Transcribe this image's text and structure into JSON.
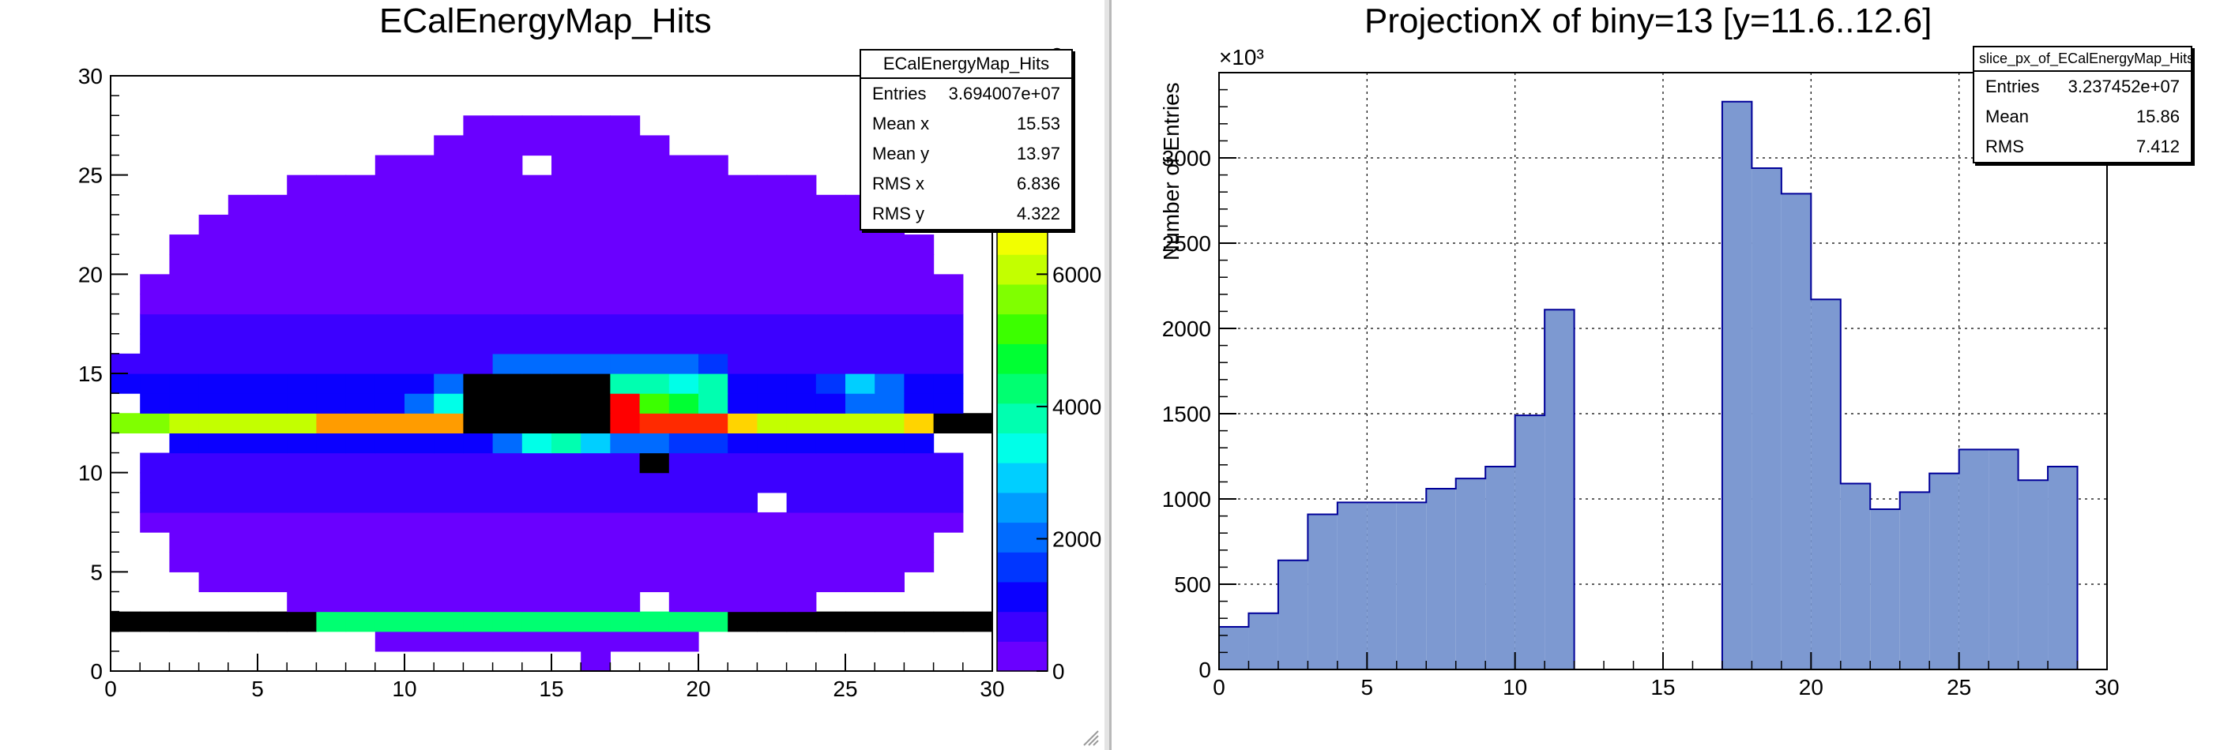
{
  "left": {
    "title": "ECalEnergyMap_Hits",
    "stats": {
      "name": "ECalEnergyMap_Hits",
      "rows": [
        {
          "label": "Entries",
          "value": "3.694007e+07"
        },
        {
          "label": "Mean x",
          "value": "15.53"
        },
        {
          "label": "Mean y",
          "value": "13.97"
        },
        {
          "label": "RMS x",
          "value": "6.836"
        },
        {
          "label": "RMS y",
          "value": "4.322"
        }
      ]
    },
    "palette_labels": [
      "0",
      "2000",
      "4000",
      "6000"
    ],
    "palette_exponent": "3",
    "palette_partial": [
      "00",
      "00"
    ]
  },
  "right": {
    "title": "ProjectionX of biny=13 [y=11.6..12.6]",
    "ylabel": "Number of Entries",
    "exponent_label": "×10³",
    "stats": {
      "name": "slice_px_of_ECalEnergyMap_Hits",
      "rows": [
        {
          "label": "Entries",
          "value": "3.237452e+07"
        },
        {
          "label": "Mean",
          "value": "15.86"
        },
        {
          "label": "RMS",
          "value": "7.412"
        }
      ]
    }
  },
  "colors": {
    "fill": "#7d99d1",
    "line": "#000099",
    "palette": [
      "#6a00ff",
      "#3c00ff",
      "#0b00ff",
      "#0036ff",
      "#006bff",
      "#009cff",
      "#00cfff",
      "#00ffe8",
      "#00ffb0",
      "#00ff71",
      "#00ff33",
      "#3cff00",
      "#80ff00",
      "#c3ff00",
      "#f2ff00",
      "#ffd400",
      "#ff9c00",
      "#ff6000",
      "#ff2a00",
      "#ff0000"
    ]
  },
  "chart_data": [
    {
      "type": "heatmap",
      "title": "ECalEnergyMap_Hits",
      "x_range": [
        0,
        30
      ],
      "y_range": [
        0,
        30
      ],
      "x_ticks": [
        0,
        5,
        10,
        15,
        20,
        25,
        30
      ],
      "y_ticks": [
        0,
        5,
        10,
        15,
        20,
        25,
        30
      ],
      "z_range": [
        0,
        9000
      ],
      "z_ticks": [
        0,
        2000,
        4000,
        6000
      ],
      "bins": 30,
      "x_lo_per_row": [
        16,
        9,
        0,
        6,
        3,
        2,
        2,
        1,
        1,
        1,
        1,
        2,
        0,
        1,
        0,
        0,
        1,
        1,
        1,
        1,
        2,
        2,
        3,
        4,
        6,
        9,
        11,
        12,
        0,
        0
      ],
      "x_hi_per_row": [
        16,
        19,
        29,
        23,
        26,
        27,
        27,
        28,
        28,
        28,
        28,
        27,
        29,
        28,
        28,
        28,
        28,
        28,
        28,
        28,
        27,
        27,
        26,
        25,
        23,
        20,
        18,
        17,
        0,
        0
      ],
      "cells": [
        [
          0,
          2,
          0
        ],
        [
          1,
          2,
          0
        ],
        [
          2,
          2,
          0
        ],
        [
          3,
          2,
          0
        ],
        [
          4,
          2,
          0
        ],
        [
          5,
          2,
          0
        ],
        [
          6,
          2,
          0
        ],
        [
          7,
          2,
          4200
        ],
        [
          8,
          2,
          4200
        ],
        [
          9,
          2,
          4200
        ],
        [
          10,
          2,
          4200
        ],
        [
          11,
          2,
          4200
        ],
        [
          12,
          2,
          4200
        ],
        [
          13,
          2,
          4200
        ],
        [
          14,
          2,
          4200
        ],
        [
          15,
          2,
          4200
        ],
        [
          16,
          2,
          4200
        ],
        [
          17,
          2,
          4200
        ],
        [
          18,
          2,
          4200
        ],
        [
          19,
          2,
          4200
        ],
        [
          20,
          2,
          4200
        ],
        [
          21,
          2,
          0
        ],
        [
          22,
          2,
          0
        ],
        [
          23,
          2,
          0
        ],
        [
          24,
          2,
          0
        ],
        [
          25,
          2,
          0
        ],
        [
          26,
          2,
          0
        ],
        [
          27,
          2,
          0
        ],
        [
          28,
          2,
          0
        ],
        [
          29,
          2,
          0
        ],
        [
          0,
          12,
          5800
        ],
        [
          1,
          12,
          5800
        ],
        [
          2,
          12,
          6000
        ],
        [
          3,
          12,
          6000
        ],
        [
          4,
          12,
          6000
        ],
        [
          5,
          12,
          6000
        ],
        [
          6,
          12,
          6000
        ],
        [
          7,
          12,
          7200
        ],
        [
          8,
          12,
          7200
        ],
        [
          9,
          12,
          7200
        ],
        [
          10,
          12,
          7200
        ],
        [
          11,
          12,
          7200
        ],
        [
          12,
          12,
          0
        ],
        [
          13,
          12,
          0
        ],
        [
          14,
          12,
          0
        ],
        [
          15,
          12,
          0
        ],
        [
          16,
          12,
          0
        ],
        [
          17,
          12,
          9000
        ],
        [
          18,
          12,
          8400
        ],
        [
          19,
          12,
          8400
        ],
        [
          20,
          12,
          8100
        ],
        [
          21,
          12,
          6800
        ],
        [
          22,
          12,
          6200
        ],
        [
          23,
          12,
          6200
        ],
        [
          24,
          12,
          6200
        ],
        [
          25,
          12,
          6200
        ],
        [
          26,
          12,
          6200
        ],
        [
          27,
          12,
          7000
        ],
        [
          28,
          12,
          0
        ],
        [
          29,
          12,
          0
        ],
        [
          17,
          13,
          9000
        ],
        [
          18,
          13,
          5200
        ],
        [
          19,
          13,
          4600
        ],
        [
          20,
          13,
          3700
        ],
        [
          10,
          13,
          2200
        ],
        [
          11,
          13,
          3200
        ],
        [
          12,
          13,
          0
        ],
        [
          13,
          13,
          0
        ],
        [
          14,
          13,
          0
        ],
        [
          15,
          13,
          0
        ],
        [
          16,
          13,
          0
        ],
        [
          25,
          13,
          2000
        ],
        [
          26,
          13,
          2000
        ],
        [
          17,
          14,
          4000
        ],
        [
          18,
          14,
          3700
        ],
        [
          19,
          14,
          3200
        ],
        [
          20,
          14,
          3800
        ],
        [
          11,
          14,
          2000
        ],
        [
          12,
          14,
          0
        ],
        [
          13,
          14,
          0
        ],
        [
          14,
          14,
          0
        ],
        [
          15,
          14,
          0
        ],
        [
          16,
          14,
          0
        ],
        [
          24,
          14,
          1600
        ],
        [
          25,
          14,
          3000
        ],
        [
          26,
          14,
          1800
        ],
        [
          13,
          15,
          2000
        ],
        [
          14,
          15,
          2200
        ],
        [
          15,
          15,
          2200
        ],
        [
          16,
          15,
          2200
        ],
        [
          17,
          15,
          1800
        ],
        [
          18,
          15,
          2000
        ],
        [
          19,
          15,
          1800
        ],
        [
          20,
          15,
          1400
        ],
        [
          13,
          11,
          2200
        ],
        [
          14,
          11,
          3200
        ],
        [
          15,
          11,
          3600
        ],
        [
          16,
          11,
          2800
        ],
        [
          17,
          11,
          1800
        ],
        [
          18,
          11,
          2200
        ],
        [
          19,
          11,
          1400
        ],
        [
          20,
          11,
          1400
        ],
        [
          12,
          11,
          1200
        ],
        [
          18,
          10,
          0
        ]
      ]
    },
    {
      "type": "bar",
      "title": "ProjectionX of biny=13 [y=11.6..12.6]",
      "xlabel": "",
      "ylabel": "Number of Entries",
      "y_exponent": "10^3",
      "xlim": [
        0,
        30
      ],
      "ylim": [
        0,
        3500
      ],
      "x_ticks": [
        0,
        5,
        10,
        15,
        20,
        25,
        30
      ],
      "y_ticks": [
        0,
        500,
        1000,
        1500,
        2000,
        2500,
        3000
      ],
      "grid": true,
      "legend": "top-right",
      "bin_edges": [
        0,
        1,
        2,
        3,
        4,
        5,
        6,
        7,
        8,
        9,
        10,
        11,
        12,
        13,
        14,
        15,
        16,
        17,
        18,
        19,
        20,
        21,
        22,
        23,
        24,
        25,
        26,
        27,
        28,
        29,
        30
      ],
      "values": [
        250,
        330,
        640,
        910,
        980,
        980,
        980,
        1060,
        1120,
        1190,
        1490,
        2110,
        0,
        0,
        0,
        0,
        0,
        3330,
        2940,
        2790,
        2170,
        1090,
        940,
        1040,
        1150,
        1290,
        1290,
        1110,
        1190,
        0
      ]
    }
  ]
}
